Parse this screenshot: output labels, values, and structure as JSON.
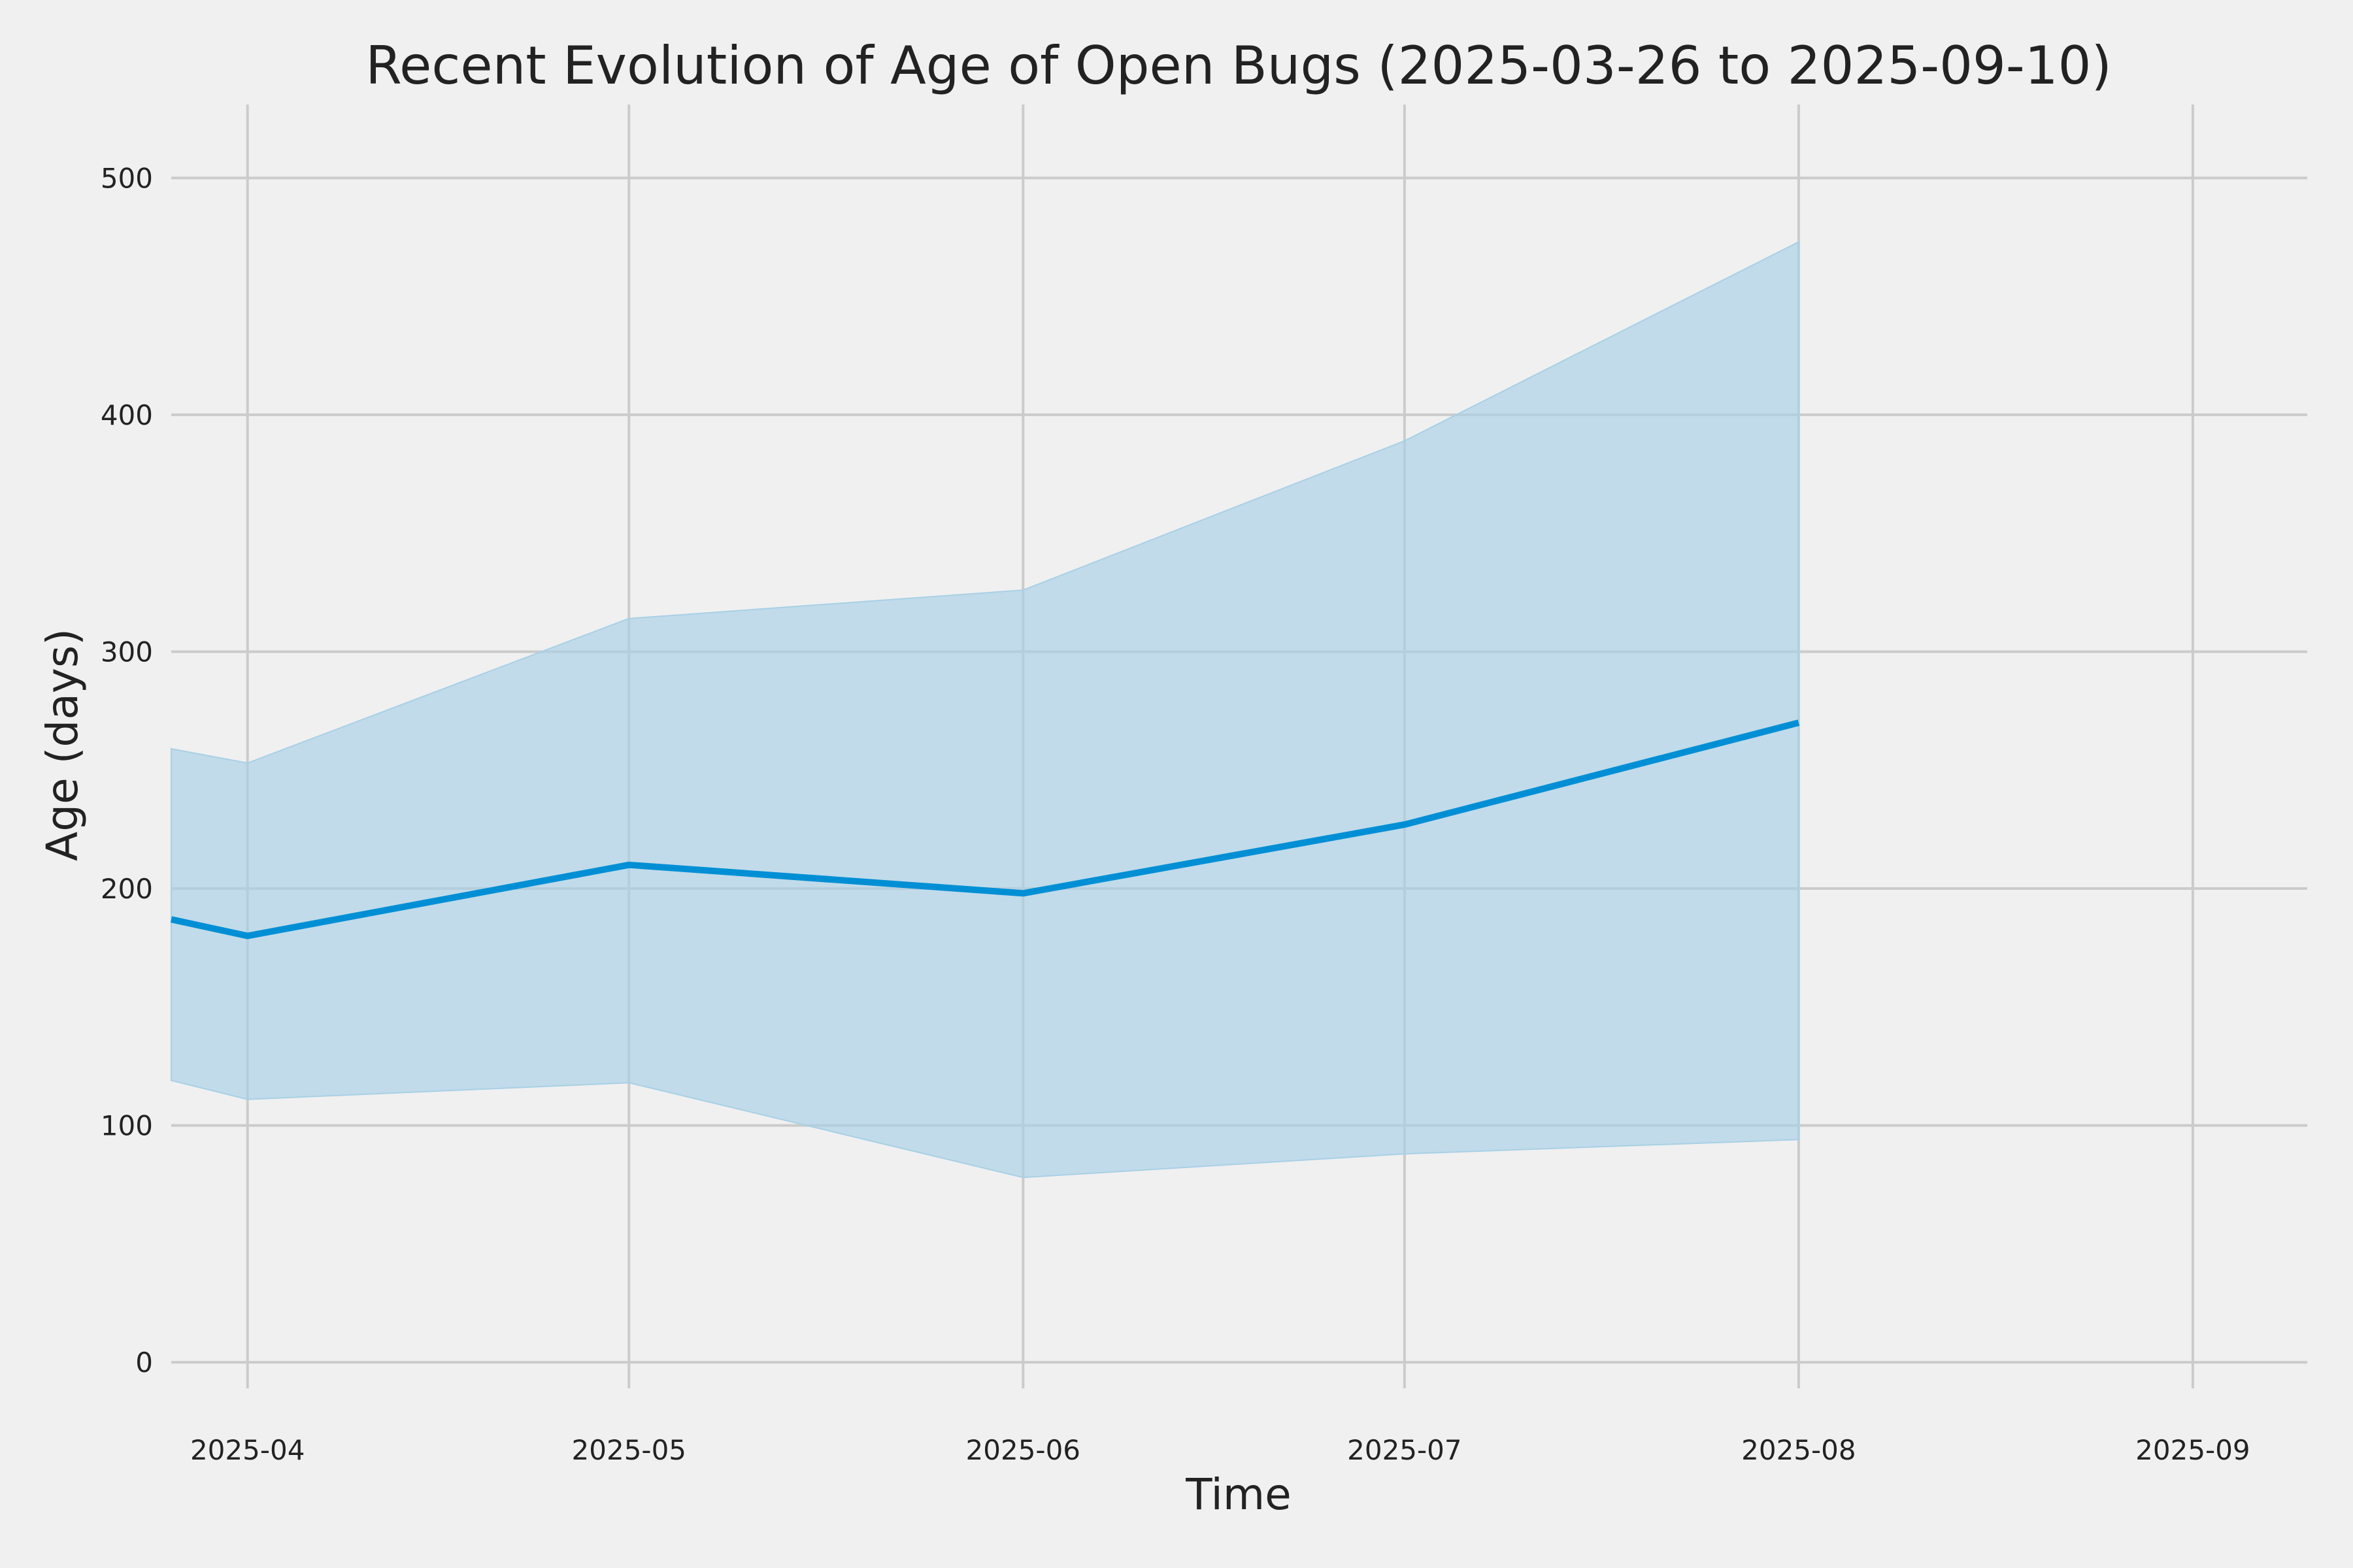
{
  "chart_data": {
    "type": "line",
    "title": "Recent Evolution of Age of Open Bugs (2025-03-26 to 2025-09-10)",
    "xlabel": "Time",
    "ylabel": "Age (days)",
    "x_axis_kind": "date",
    "xlim": [
      "2025-03-26",
      "2025-09-10"
    ],
    "ylim": [
      -11,
      531
    ],
    "grid": true,
    "y_ticks": [
      0,
      100,
      200,
      300,
      400,
      500
    ],
    "x_ticks": [
      "2025-04-01",
      "2025-05-01",
      "2025-06-01",
      "2025-07-01",
      "2025-08-01",
      "2025-09-01"
    ],
    "x_tick_labels": [
      "2025-04",
      "2025-05",
      "2025-06",
      "2025-07",
      "2025-08",
      "2025-09"
    ],
    "series": [
      {
        "kind": "line",
        "color": "#008fd5",
        "x": [
          "2025-03-26",
          "2025-04-01",
          "2025-05-01",
          "2025-06-01",
          "2025-07-01",
          "2025-08-01"
        ],
        "y": [
          187,
          180,
          210,
          198,
          227,
          270
        ]
      },
      {
        "kind": "band",
        "color": "#a8d0e6",
        "x": [
          "2025-03-26",
          "2025-04-01",
          "2025-05-01",
          "2025-06-01",
          "2025-07-01",
          "2025-08-01"
        ],
        "upper": [
          259,
          253,
          314,
          326,
          389,
          473
        ],
        "lower": [
          119,
          111,
          118,
          78,
          88,
          94
        ]
      }
    ]
  }
}
